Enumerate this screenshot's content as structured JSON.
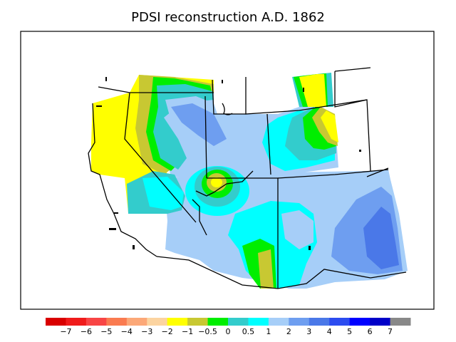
{
  "title": "PDSI reconstruction A.D. 1862",
  "legend": {
    "colors": [
      "#d90000",
      "#f01b1b",
      "#f84545",
      "#fa7b50",
      "#fca878",
      "#fcd4a0",
      "#ffff00",
      "#c8c832",
      "#00ee00",
      "#33cccc",
      "#00ffff",
      "#a6cef8",
      "#6e9ef0",
      "#4a78e8",
      "#2c4cf0",
      "#0000ff",
      "#0000c8",
      "#888888"
    ],
    "ticks": [
      "−7",
      "−6",
      "−5",
      "−4",
      "−3",
      "−2",
      "−1",
      "−0.5",
      "0",
      "0.5",
      "1",
      "2",
      "3",
      "4",
      "5",
      "6",
      "7"
    ]
  },
  "palette": {
    "yellow": "#ffff00",
    "olive": "#c8c832",
    "green": "#00ee00",
    "teal": "#33cccc",
    "cyan": "#00ffff",
    "light_blue": "#a6cef8",
    "mid_blue": "#6e9ef0",
    "deep_blue": "#4a78e8"
  }
}
